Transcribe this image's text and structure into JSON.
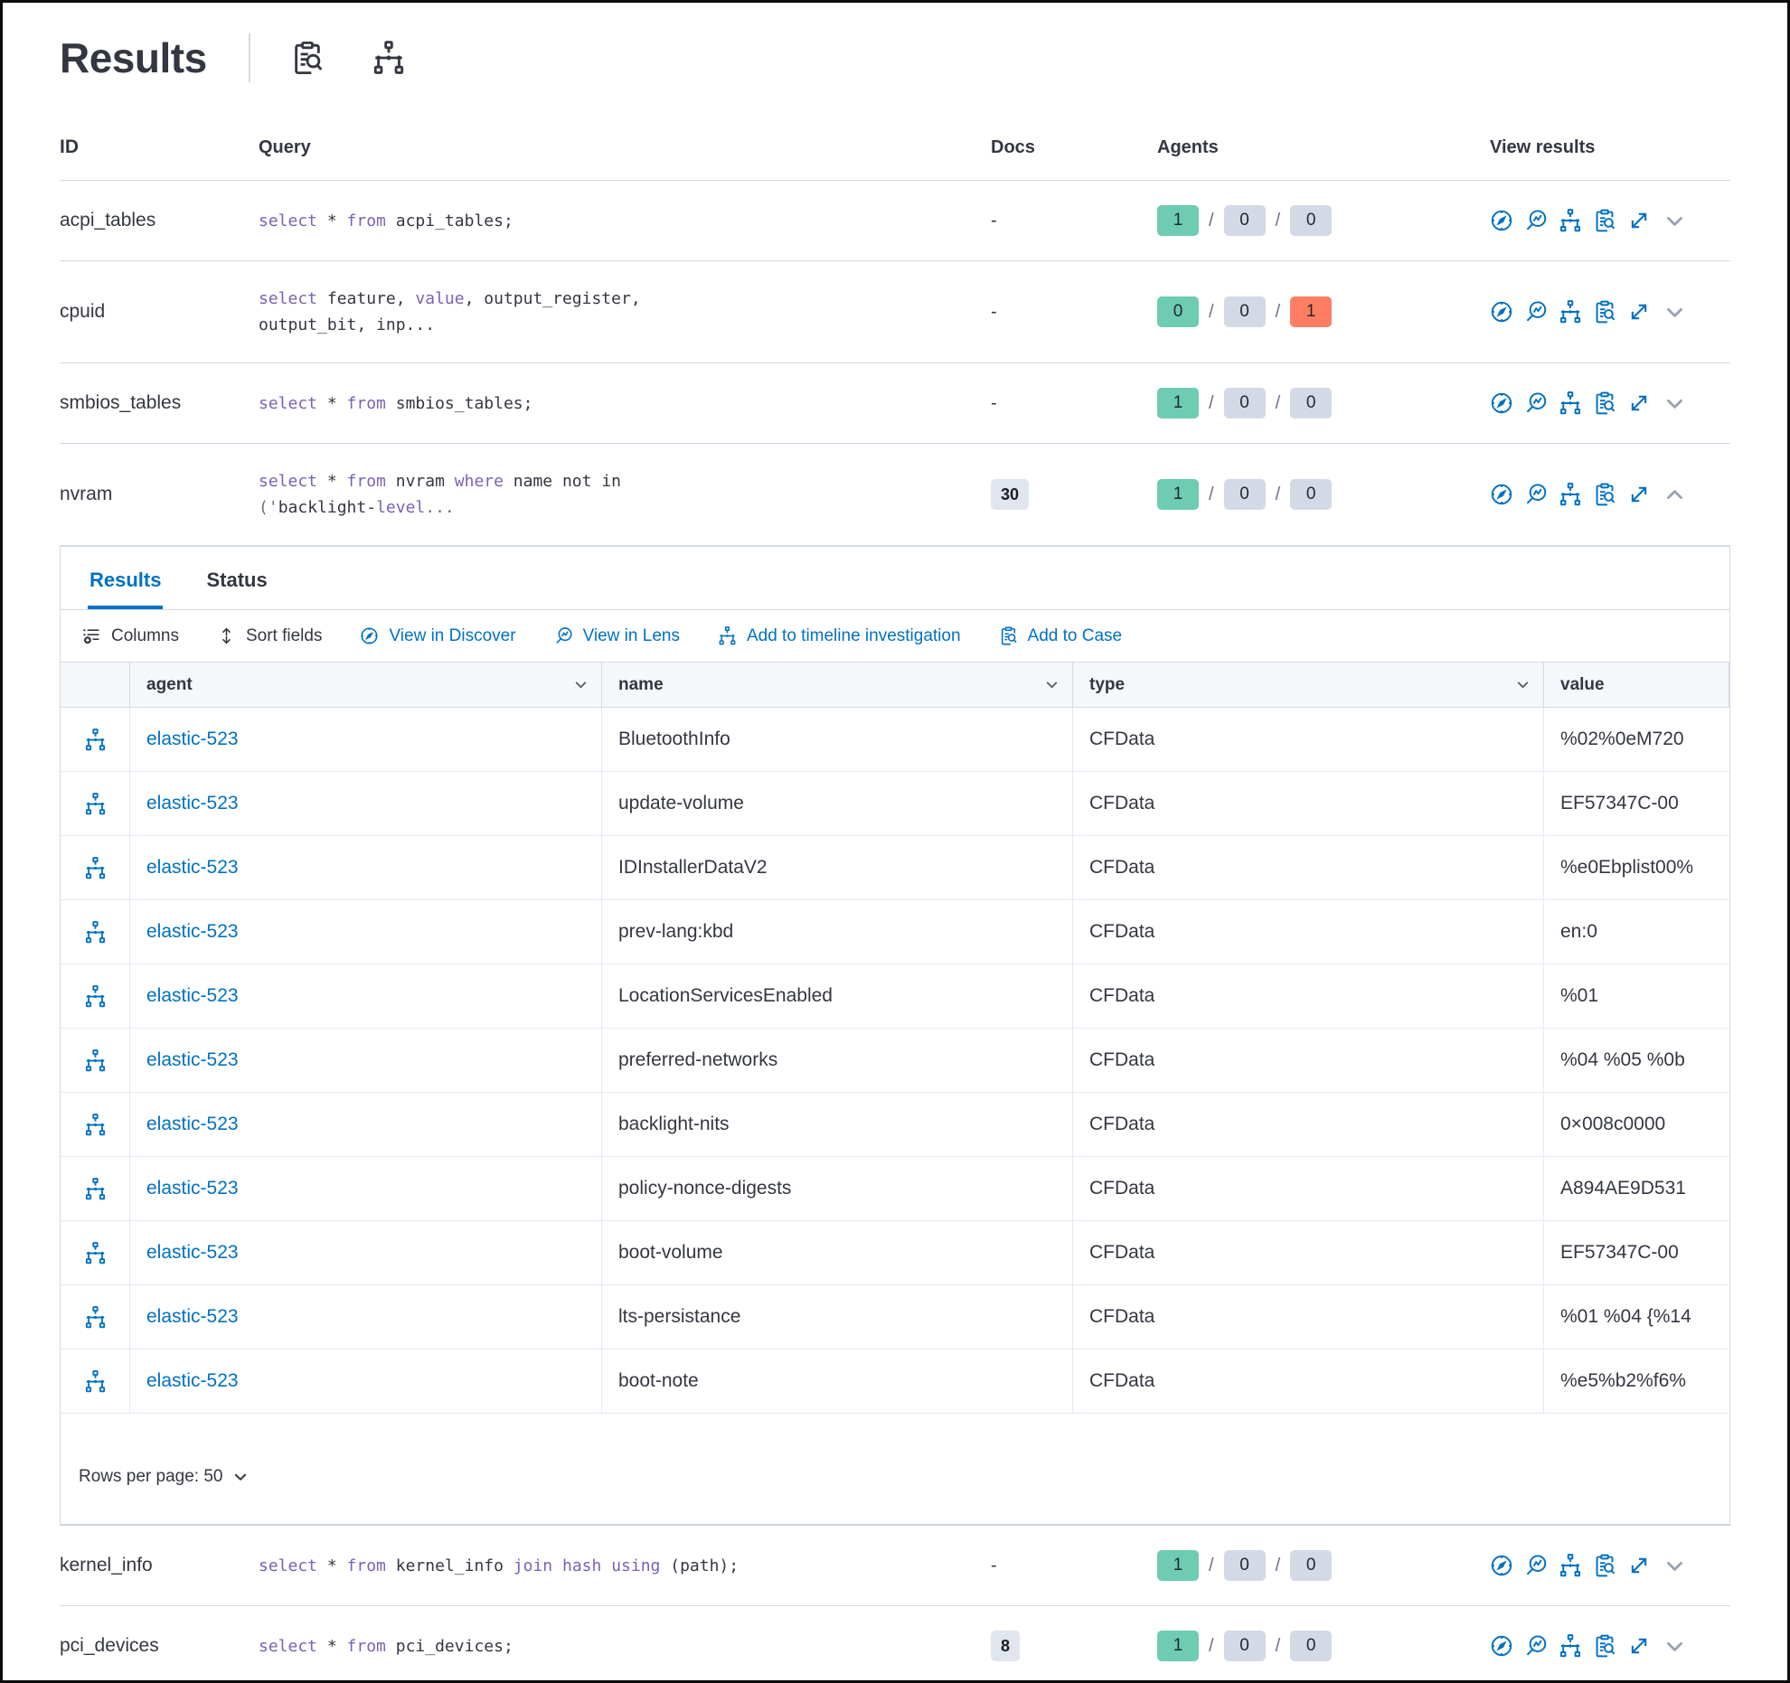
{
  "page": {
    "title": "Results"
  },
  "colors": {
    "text": "#343741",
    "link": "#0071C2",
    "keyword": "#7B61B5",
    "muted": "#69707D",
    "success": "#6DCCB1",
    "danger": "#FF7E62",
    "neutral": "#D3DAE6",
    "docs_bg": "#E0E5EE",
    "border": "#D3DAE6",
    "border_light": "#E4E9F2",
    "header_bg": "#F5F7FA",
    "chevron": "#98A2B3"
  },
  "header_icons": [
    "inspect-clipboard-icon",
    "pack-sitemap-icon"
  ],
  "outer_table": {
    "headers": {
      "id": "ID",
      "query": "Query",
      "docs": "Docs",
      "agents": "Agents",
      "view_results": "View results"
    },
    "view_results_icons": [
      "view-in-discover-icon",
      "view-in-lens-icon",
      "add-to-timeline-icon",
      "add-to-case-icon",
      "expand-results-icon"
    ],
    "rows": [
      {
        "id": "acpi_tables",
        "docs": "-",
        "docs_badge": false,
        "agents": [
          "1",
          "0",
          "0"
        ],
        "failed": false,
        "expanded": false,
        "query_lines": [
          [
            [
              "select",
              "kw"
            ],
            [
              " * ",
              "pl"
            ],
            [
              "from",
              "kw"
            ],
            [
              " acpi_tables;",
              "pl"
            ]
          ]
        ]
      },
      {
        "id": "cpuid",
        "docs": "-",
        "docs_badge": false,
        "agents": [
          "0",
          "0",
          "1"
        ],
        "failed": true,
        "expanded": false,
        "query_lines": [
          [
            [
              "select",
              "kw"
            ],
            [
              " feature, ",
              "pl"
            ],
            [
              "value",
              "kw"
            ],
            [
              ", output_register,",
              "pl"
            ]
          ],
          [
            [
              "output_bit, inp...",
              "pl"
            ]
          ]
        ]
      },
      {
        "id": "smbios_tables",
        "docs": "-",
        "docs_badge": false,
        "agents": [
          "1",
          "0",
          "0"
        ],
        "failed": false,
        "expanded": false,
        "query_lines": [
          [
            [
              "select",
              "kw"
            ],
            [
              " * ",
              "pl"
            ],
            [
              "from",
              "kw"
            ],
            [
              " smbios_tables;",
              "pl"
            ]
          ]
        ]
      },
      {
        "id": "nvram",
        "docs": "30",
        "docs_badge": true,
        "agents": [
          "1",
          "0",
          "0"
        ],
        "failed": false,
        "expanded": true,
        "query_lines": [
          [
            [
              "select",
              "kw"
            ],
            [
              " * ",
              "pl"
            ],
            [
              "from",
              "kw"
            ],
            [
              " nvram ",
              "pl"
            ],
            [
              "where",
              "kw"
            ],
            [
              " name not in",
              "pl"
            ]
          ],
          [
            [
              "('",
              "pu"
            ],
            [
              "backlight-",
              "pl"
            ],
            [
              "level",
              "kw"
            ],
            [
              "...",
              "pu"
            ]
          ]
        ]
      },
      {
        "id": "kernel_info",
        "docs": "-",
        "docs_badge": false,
        "agents": [
          "1",
          "0",
          "0"
        ],
        "failed": false,
        "expanded": false,
        "query_lines": [
          [
            [
              "select",
              "kw"
            ],
            [
              " * ",
              "pl"
            ],
            [
              "from",
              "kw"
            ],
            [
              " kernel_info ",
              "pl"
            ],
            [
              "join",
              "kw"
            ],
            [
              " ",
              "pl"
            ],
            [
              "hash",
              "kw"
            ],
            [
              " ",
              "pl"
            ],
            [
              "using",
              "kw"
            ],
            [
              " (path);",
              "pl"
            ]
          ]
        ]
      },
      {
        "id": "pci_devices",
        "docs": "8",
        "docs_badge": true,
        "agents": [
          "1",
          "0",
          "0"
        ],
        "failed": false,
        "expanded": false,
        "query_lines": [
          [
            [
              "select",
              "kw"
            ],
            [
              " * ",
              "pl"
            ],
            [
              "from",
              "kw"
            ],
            [
              " pci_devices;",
              "pl"
            ]
          ]
        ]
      }
    ]
  },
  "expanded": {
    "tabs": [
      "Results",
      "Status"
    ],
    "toolbar": {
      "columns": "Columns",
      "sort": "Sort fields",
      "discover": "View in Discover",
      "lens": "View in Lens",
      "timeline": "Add to timeline investigation",
      "case": "Add to Case"
    },
    "grid": {
      "headers": [
        "agent",
        "name",
        "type",
        "value"
      ],
      "rows": [
        {
          "agent": "elastic-523",
          "name": "BluetoothInfo",
          "type": "CFData",
          "value": "%02%0eM720"
        },
        {
          "agent": "elastic-523",
          "name": "update-volume",
          "type": "CFData",
          "value": "EF57347C-00"
        },
        {
          "agent": "elastic-523",
          "name": "IDInstallerDataV2",
          "type": "CFData",
          "value": "%e0Ebplist00%"
        },
        {
          "agent": "elastic-523",
          "name": "prev-lang:kbd",
          "type": "CFData",
          "value": "en:0"
        },
        {
          "agent": "elastic-523",
          "name": "LocationServicesEnabled",
          "type": "CFData",
          "value": "%01"
        },
        {
          "agent": "elastic-523",
          "name": "preferred-networks",
          "type": "CFData",
          "value": "%04 %05 %0b"
        },
        {
          "agent": "elastic-523",
          "name": "backlight-nits",
          "type": "CFData",
          "value": "0×008c0000"
        },
        {
          "agent": "elastic-523",
          "name": "policy-nonce-digests",
          "type": "CFData",
          "value": "A894AE9D531"
        },
        {
          "agent": "elastic-523",
          "name": "boot-volume",
          "type": "CFData",
          "value": "EF57347C-00"
        },
        {
          "agent": "elastic-523",
          "name": "lts-persistance",
          "type": "CFData",
          "value": "%01 %04 {%14"
        },
        {
          "agent": "elastic-523",
          "name": "boot-note",
          "type": "CFData",
          "value": "%e5%b2%f6%"
        }
      ]
    },
    "pagination": "Rows per page: 50"
  }
}
